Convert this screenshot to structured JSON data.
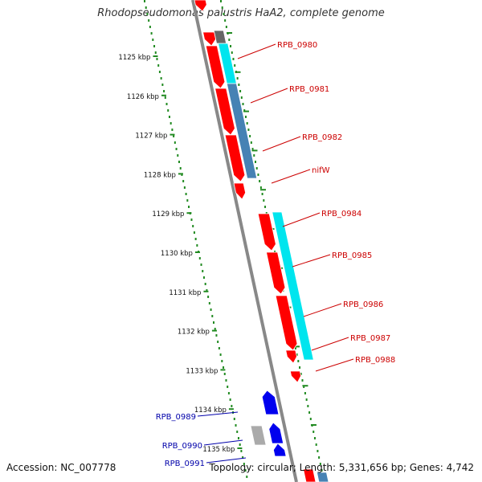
{
  "title": "Rhodopseudomonas palustris HaA2, complete genome",
  "accession": "Accession: NC_007778",
  "topology_info": "Topology: circular; Length: 5,331,656 bp; Genes: 4,742",
  "colors": {
    "backbone": "#888888",
    "tick": "#228B22",
    "gene_red": "#ff0000",
    "gene_blue": "#0000ee",
    "cyan_band": "#00e5ee",
    "steel_band": "#4682b4",
    "gray_block": "#aaaaaa",
    "dark_gray_block": "#666666",
    "label_red": "#cc0000",
    "label_blue": "#0000aa"
  },
  "scale_labels": [
    "1125 kbp",
    "1126 kbp",
    "1127 kbp",
    "1128 kbp",
    "1129 kbp",
    "1130 kbp",
    "1131 kbp",
    "1132 kbp",
    "1133 kbp",
    "1134 kbp",
    "1135 kbp"
  ],
  "gene_labels_right": [
    "RPB_0980",
    "RPB_0981",
    "RPB_0982",
    "nifW",
    "RPB_0984",
    "RPB_0985",
    "RPB_0986",
    "RPB_0987",
    "RPB_0988"
  ],
  "gene_labels_left": [
    "RPB_0989",
    "RPB_0990",
    "RPB_0991"
  ]
}
